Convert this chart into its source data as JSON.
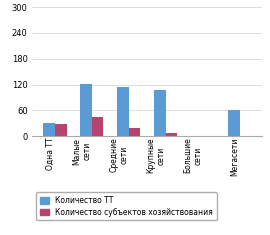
{
  "categories": [
    "Одна ТТ",
    "Малые\nсети",
    "Средние\nсети",
    "Крупные\nсети",
    "Большие\nсети",
    "Мегасети"
  ],
  "values_tt": [
    30,
    122,
    115,
    108,
    0,
    60
  ],
  "values_subj": [
    28,
    44,
    20,
    8,
    0,
    0
  ],
  "color_tt": "#5b9bd5",
  "color_subj": "#b5446e",
  "ylim": [
    0,
    300
  ],
  "yticks": [
    0,
    60,
    120,
    180,
    240,
    300
  ],
  "legend_tt": "Количество ТТ",
  "legend_subj": "Количество субъектов хозяйствования",
  "bar_width": 0.32,
  "background_color": "#ffffff"
}
